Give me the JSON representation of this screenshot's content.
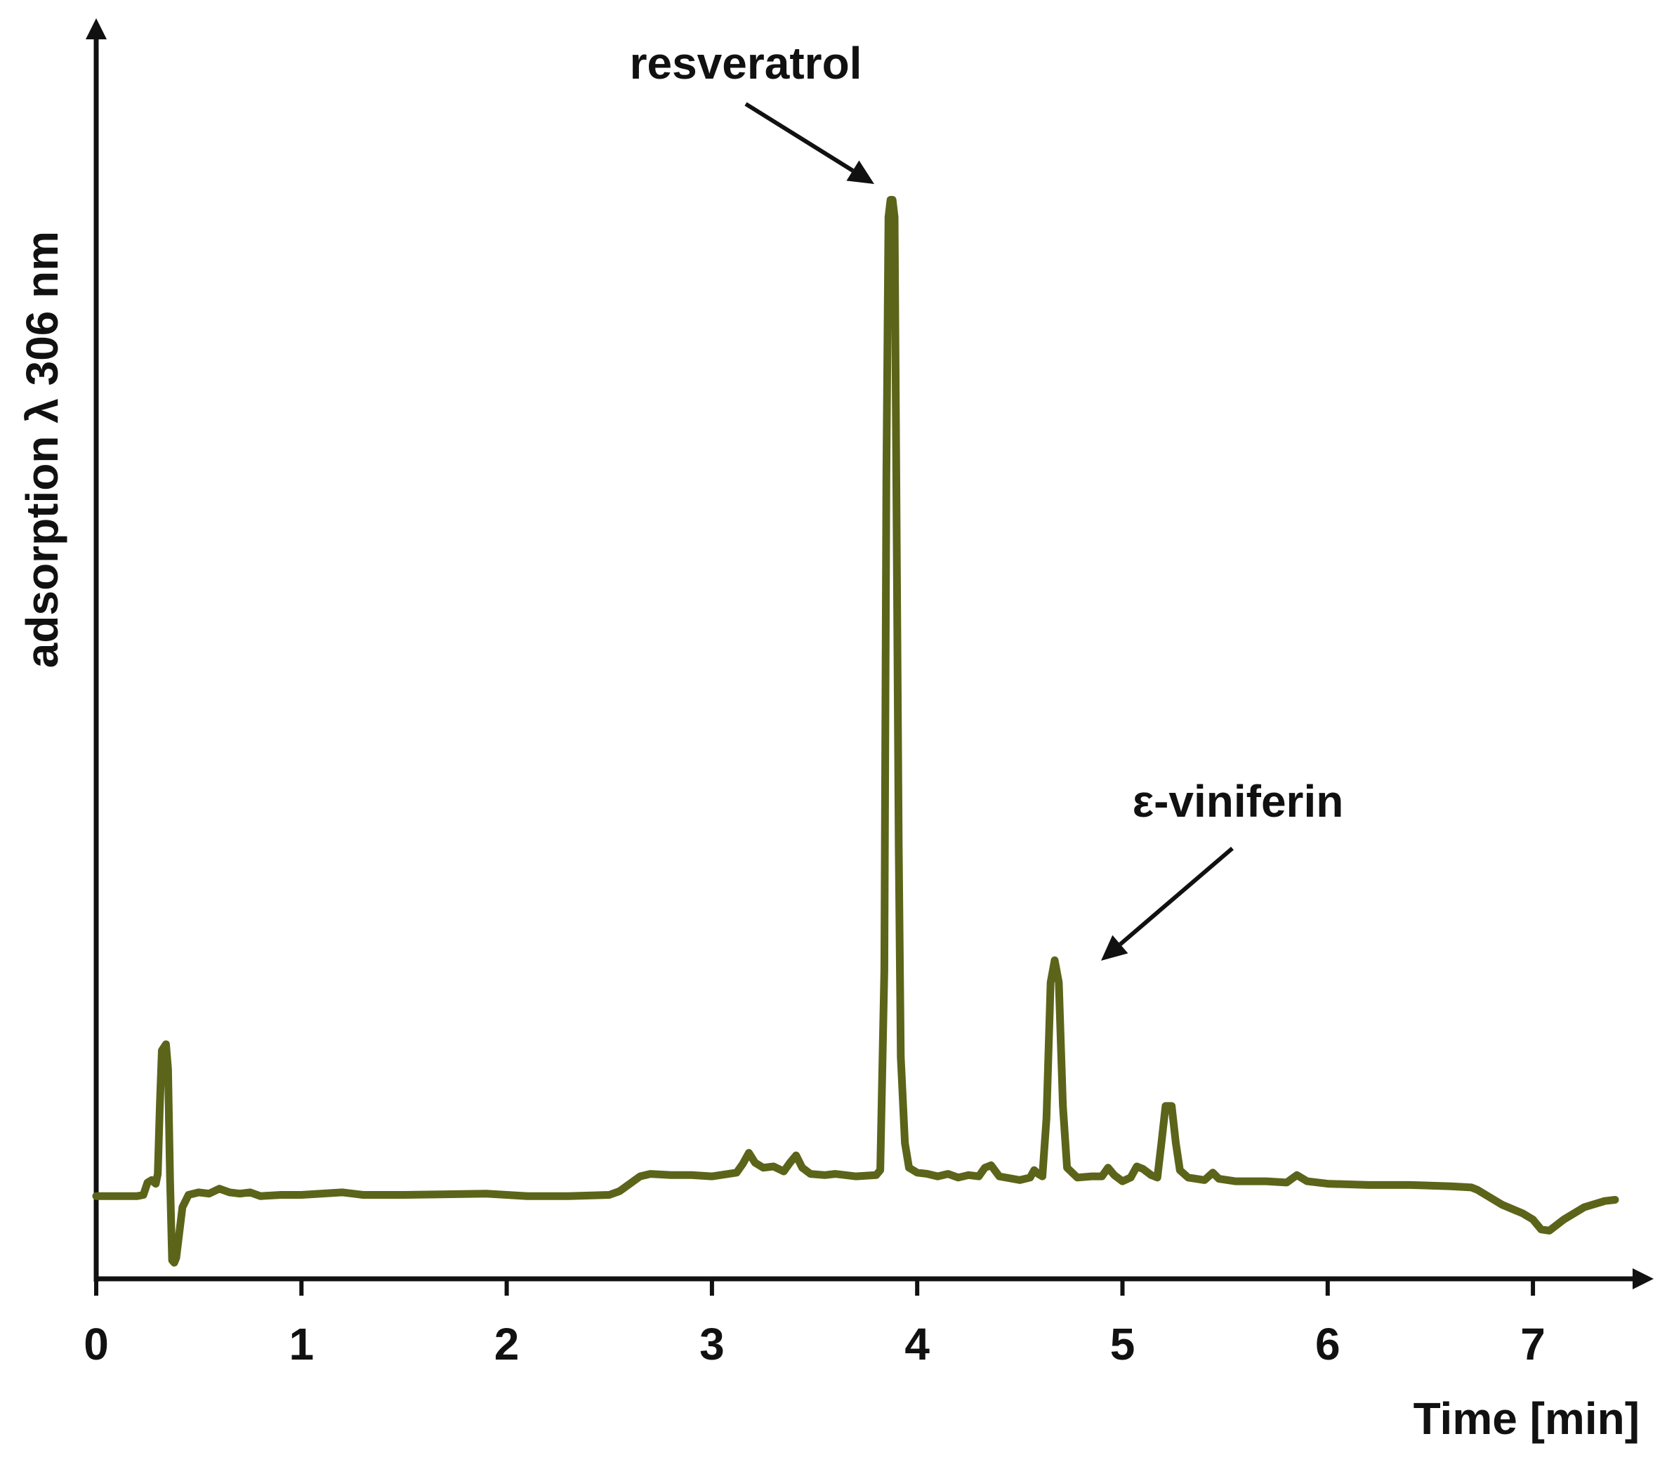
{
  "colors": {
    "trace": "#5b6419",
    "axis": "#111111",
    "background": "#ffffff"
  },
  "chart_data": {
    "type": "line",
    "title": "",
    "xlabel": "Time [min]",
    "ylabel": "adsorption λ 306 nm",
    "xlim": [
      0,
      7.4
    ],
    "ylim": [
      0,
      100
    ],
    "x_ticks": [
      0,
      1,
      2,
      3,
      4,
      5,
      6,
      7
    ],
    "x_tick_labels": [
      "0",
      "1",
      "2",
      "3",
      "4",
      "5",
      "6",
      "7"
    ],
    "y_ticks_shown": false,
    "grid": false,
    "legend": "none",
    "annotations": [
      {
        "text": "resveratrol",
        "points_to": {
          "x": 3.82,
          "y": 87.4
        }
      },
      {
        "text": "ε-viniferin",
        "points_to": {
          "x": 4.72,
          "y": 25.8
        }
      }
    ],
    "series": [
      {
        "points": [
          [
            0.0,
            6.7
          ],
          [
            0.1,
            6.7
          ],
          [
            0.2,
            6.7
          ],
          [
            0.23,
            6.8
          ],
          [
            0.25,
            7.8
          ],
          [
            0.27,
            8.0
          ],
          [
            0.29,
            7.7
          ],
          [
            0.3,
            8.5
          ],
          [
            0.31,
            14.0
          ],
          [
            0.32,
            18.5
          ],
          [
            0.34,
            19.0
          ],
          [
            0.35,
            17.0
          ],
          [
            0.36,
            8.0
          ],
          [
            0.37,
            1.5
          ],
          [
            0.38,
            1.3
          ],
          [
            0.39,
            1.7
          ],
          [
            0.42,
            5.8
          ],
          [
            0.45,
            6.8
          ],
          [
            0.5,
            7.0
          ],
          [
            0.55,
            6.9
          ],
          [
            0.6,
            7.3
          ],
          [
            0.65,
            7.0
          ],
          [
            0.7,
            6.9
          ],
          [
            0.75,
            7.0
          ],
          [
            0.8,
            6.7
          ],
          [
            0.9,
            6.8
          ],
          [
            1.0,
            6.8
          ],
          [
            1.2,
            7.0
          ],
          [
            1.3,
            6.8
          ],
          [
            1.5,
            6.8
          ],
          [
            1.9,
            6.9
          ],
          [
            2.1,
            6.7
          ],
          [
            2.3,
            6.7
          ],
          [
            2.5,
            6.8
          ],
          [
            2.55,
            7.1
          ],
          [
            2.65,
            8.3
          ],
          [
            2.7,
            8.5
          ],
          [
            2.8,
            8.4
          ],
          [
            2.9,
            8.4
          ],
          [
            3.0,
            8.3
          ],
          [
            3.12,
            8.6
          ],
          [
            3.15,
            9.3
          ],
          [
            3.18,
            10.2
          ],
          [
            3.21,
            9.4
          ],
          [
            3.25,
            9.0
          ],
          [
            3.3,
            9.1
          ],
          [
            3.35,
            8.7
          ],
          [
            3.38,
            9.4
          ],
          [
            3.41,
            10.0
          ],
          [
            3.44,
            9.0
          ],
          [
            3.48,
            8.5
          ],
          [
            3.55,
            8.4
          ],
          [
            3.6,
            8.5
          ],
          [
            3.7,
            8.3
          ],
          [
            3.8,
            8.4
          ],
          [
            3.82,
            8.8
          ],
          [
            3.84,
            25.0
          ],
          [
            3.85,
            65.0
          ],
          [
            3.86,
            86.0
          ],
          [
            3.87,
            87.4
          ],
          [
            3.88,
            87.4
          ],
          [
            3.89,
            86.0
          ],
          [
            3.9,
            60.0
          ],
          [
            3.91,
            35.0
          ],
          [
            3.92,
            18.0
          ],
          [
            3.94,
            11.0
          ],
          [
            3.96,
            9.0
          ],
          [
            4.0,
            8.6
          ],
          [
            4.05,
            8.5
          ],
          [
            4.1,
            8.3
          ],
          [
            4.15,
            8.5
          ],
          [
            4.2,
            8.2
          ],
          [
            4.25,
            8.4
          ],
          [
            4.3,
            8.3
          ],
          [
            4.33,
            9.0
          ],
          [
            4.36,
            9.2
          ],
          [
            4.4,
            8.3
          ],
          [
            4.5,
            8.0
          ],
          [
            4.55,
            8.2
          ],
          [
            4.57,
            8.8
          ],
          [
            4.59,
            8.5
          ],
          [
            4.61,
            8.3
          ],
          [
            4.63,
            13.0
          ],
          [
            4.65,
            24.0
          ],
          [
            4.67,
            25.8
          ],
          [
            4.69,
            24.0
          ],
          [
            4.71,
            14.0
          ],
          [
            4.73,
            9.0
          ],
          [
            4.78,
            8.2
          ],
          [
            4.85,
            8.3
          ],
          [
            4.9,
            8.3
          ],
          [
            4.93,
            9.0
          ],
          [
            4.96,
            8.4
          ],
          [
            5.0,
            7.9
          ],
          [
            5.04,
            8.2
          ],
          [
            5.07,
            9.1
          ],
          [
            5.1,
            8.9
          ],
          [
            5.14,
            8.4
          ],
          [
            5.17,
            8.2
          ],
          [
            5.19,
            11.0
          ],
          [
            5.21,
            14.0
          ],
          [
            5.24,
            14.0
          ],
          [
            5.26,
            11.0
          ],
          [
            5.28,
            8.8
          ],
          [
            5.32,
            8.2
          ],
          [
            5.4,
            8.0
          ],
          [
            5.44,
            8.6
          ],
          [
            5.47,
            8.1
          ],
          [
            5.55,
            7.9
          ],
          [
            5.7,
            7.9
          ],
          [
            5.8,
            7.8
          ],
          [
            5.85,
            8.4
          ],
          [
            5.9,
            7.9
          ],
          [
            6.0,
            7.7
          ],
          [
            6.2,
            7.6
          ],
          [
            6.4,
            7.6
          ],
          [
            6.6,
            7.5
          ],
          [
            6.7,
            7.4
          ],
          [
            6.73,
            7.2
          ],
          [
            6.85,
            6.0
          ],
          [
            6.95,
            5.3
          ],
          [
            7.0,
            4.8
          ],
          [
            7.04,
            4.0
          ],
          [
            7.08,
            3.9
          ],
          [
            7.15,
            4.8
          ],
          [
            7.25,
            5.8
          ],
          [
            7.35,
            6.3
          ],
          [
            7.4,
            6.4
          ]
        ]
      }
    ]
  }
}
